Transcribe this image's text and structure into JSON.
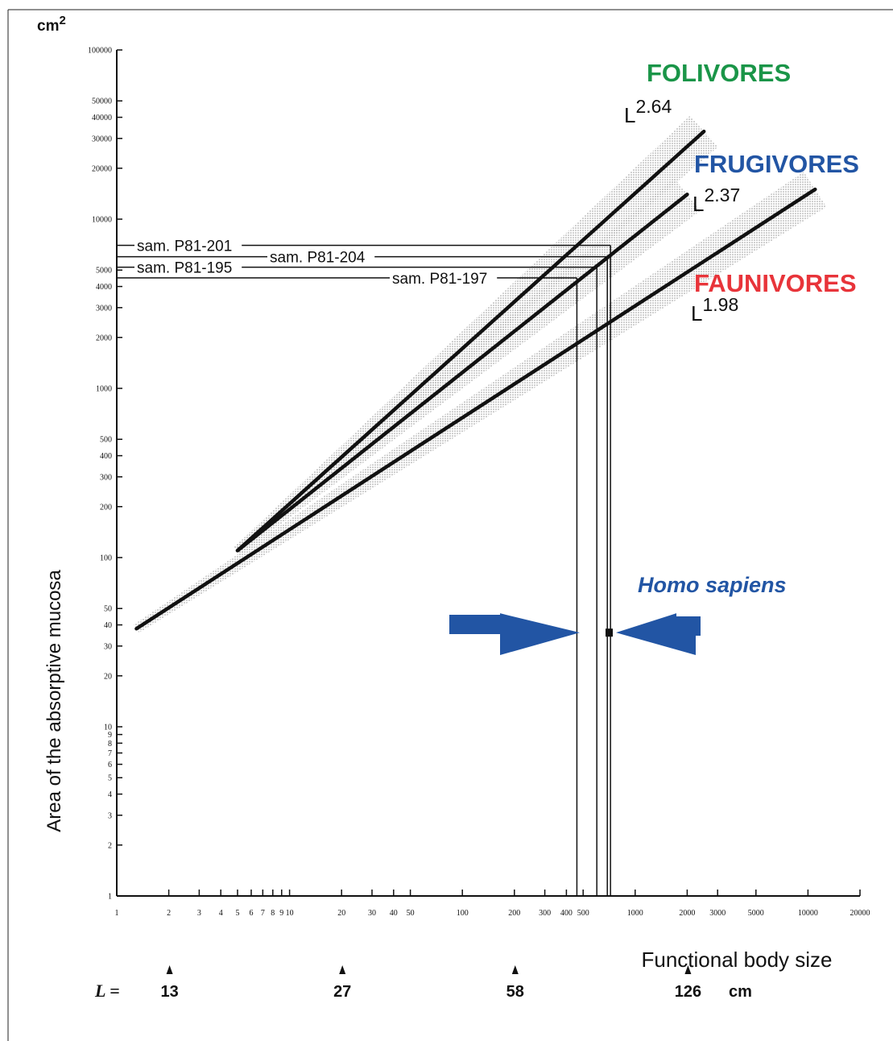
{
  "chart_data": {
    "type": "line",
    "title": "",
    "ylabel": "Area of the absorptive mucosa",
    "y_unit": "cm2",
    "xlabel": "Functional body size",
    "x_scale": "log",
    "y_scale": "log",
    "xlim": [
      1,
      20000
    ],
    "ylim": [
      1,
      100000
    ],
    "x_ticks": [
      1,
      2,
      3,
      4,
      5,
      6,
      7,
      8,
      9,
      10,
      20,
      30,
      40,
      50,
      100,
      200,
      300,
      400,
      500,
      1000,
      2000,
      3000,
      5000,
      10000,
      20000
    ],
    "x_tick_labels": [
      "1",
      "2",
      "3",
      "4",
      "5",
      "6",
      "7",
      "8",
      "9",
      "10",
      "20",
      "30",
      "40",
      "50",
      "100",
      "200",
      "300",
      "400",
      "500",
      "1000",
      "2000",
      "3000",
      "5000",
      "10000",
      "20000"
    ],
    "y_ticks": [
      1,
      2,
      3,
      4,
      5,
      6,
      7,
      8,
      9,
      10,
      20,
      30,
      40,
      50,
      100,
      200,
      300,
      400,
      500,
      1000,
      2000,
      3000,
      4000,
      5000,
      10000,
      20000,
      30000,
      40000,
      50000,
      100000
    ],
    "y_tick_labels": [
      "1",
      "2",
      "3",
      "4",
      "5",
      "6",
      "7",
      "8",
      "9",
      "10",
      "20",
      "30",
      "40",
      "50",
      "100",
      "200",
      "300",
      "400",
      "500",
      "1000",
      "2000",
      "3000",
      "4000",
      "5000",
      "10000",
      "20000",
      "30000",
      "40000",
      "50000",
      "100000"
    ],
    "series": [
      {
        "name": "FOLIVORES",
        "exponent_label": "L",
        "exponent": "2.64",
        "x": [
          5,
          2500
        ],
        "y": [
          110,
          33000
        ],
        "color": "#1a9548"
      },
      {
        "name": "FRUGIVORES",
        "exponent_label": "L",
        "exponent": "2.37",
        "x": [
          5,
          2000
        ],
        "y": [
          110,
          14000
        ],
        "color": "#2255a4"
      },
      {
        "name": "FAUNIVORES",
        "exponent_label": "L",
        "exponent": "1.98",
        "x": [
          1.3,
          11000
        ],
        "y": [
          38,
          15000
        ],
        "color": "#e8343a"
      }
    ],
    "samples": [
      {
        "label": "sam. P81-201",
        "y": 7000,
        "x": 720
      },
      {
        "label": "sam. P81-204",
        "y": 6000,
        "x": 690
      },
      {
        "label": "sam. P81-195",
        "y": 5200,
        "x": 600
      },
      {
        "label": "sam. P81-197",
        "y": 4500,
        "x": 460
      }
    ],
    "annotation": {
      "text": "Homo sapiens",
      "x": 700,
      "y": 36,
      "color": "#2255a4"
    },
    "l_axis": {
      "label": "L =",
      "unit": "cm",
      "marks": [
        {
          "label": "13",
          "x": 2
        },
        {
          "label": "27",
          "x": 20
        },
        {
          "label": "58",
          "x": 200
        },
        {
          "label": "126",
          "x": 2000
        }
      ]
    }
  }
}
